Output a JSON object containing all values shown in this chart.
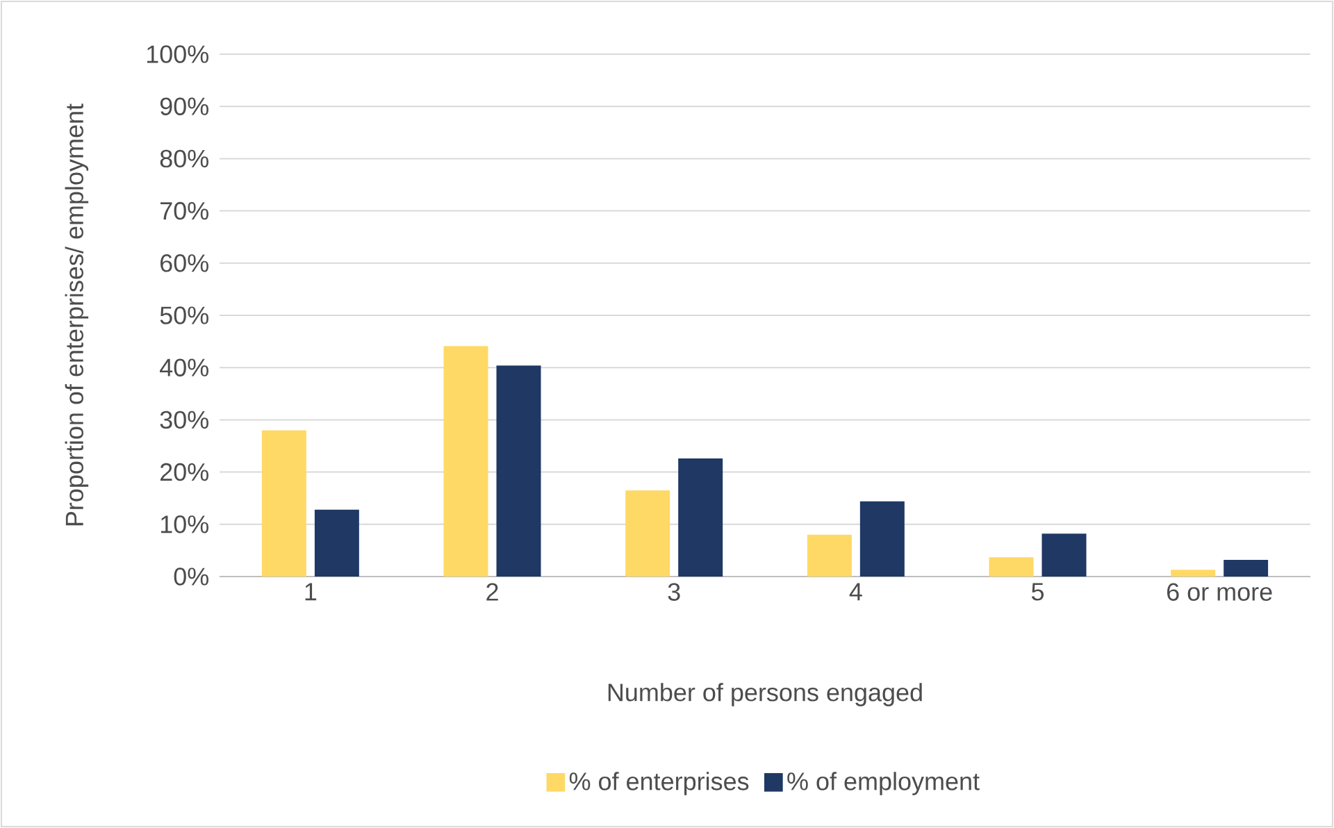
{
  "chart_data": {
    "type": "bar",
    "xlabel": "Number of persons engaged",
    "ylabel": "Proportion of enterprises/ employment",
    "categories": [
      "1",
      "2",
      "3",
      "4",
      "5",
      "6 or more"
    ],
    "series": [
      {
        "name": "% of enterprises",
        "color": "#ffd966",
        "values": [
          28,
          44.1,
          16.5,
          8.0,
          3.7,
          1.3
        ]
      },
      {
        "name": "% of employment",
        "color": "#1f3864",
        "values": [
          12.8,
          40.4,
          22.6,
          14.4,
          8.2,
          3.2
        ]
      }
    ],
    "ylim": [
      0,
      100
    ],
    "yticks": [
      {
        "value": 0,
        "label": "0%"
      },
      {
        "value": 10,
        "label": "10%"
      },
      {
        "value": 20,
        "label": "20%"
      },
      {
        "value": 30,
        "label": "30%"
      },
      {
        "value": 40,
        "label": "40%"
      },
      {
        "value": 50,
        "label": "50%"
      },
      {
        "value": 60,
        "label": "60%"
      },
      {
        "value": 70,
        "label": "70%"
      },
      {
        "value": 80,
        "label": "80%"
      },
      {
        "value": 90,
        "label": "90%"
      },
      {
        "value": 100,
        "label": "100%"
      }
    ],
    "grid": "y",
    "legend": "bottom"
  }
}
